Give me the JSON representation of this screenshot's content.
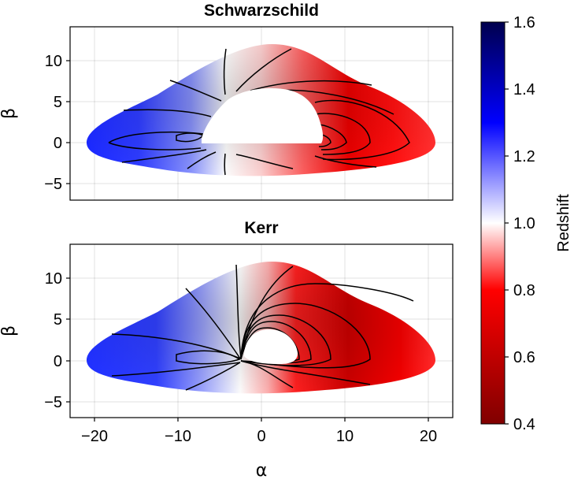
{
  "chart_data": {
    "type": "heatmap",
    "panels": [
      {
        "title": "Schwarzschild",
        "xlabel": "α",
        "ylabel": "β",
        "xlim": [
          -23,
          23
        ],
        "ylim": [
          -7,
          14
        ],
        "xticks": [
          "−20",
          "−10",
          "0",
          "10",
          "20"
        ],
        "yticks": [
          "−5",
          "0",
          "5",
          "10"
        ],
        "show_xticks": false,
        "grid": true,
        "disk_outer": {
          "x_min": -21,
          "x_max": 21,
          "y_top_peak": 12,
          "y_bottom_min": -4.2
        },
        "shadow": {
          "x_min": -7.5,
          "x_max": 7,
          "y_max": 6.5,
          "y_min": -0.2
        },
        "redshift_range": [
          0.6,
          1.35
        ]
      },
      {
        "title": "Kerr",
        "xlabel": "α",
        "ylabel": "β",
        "xlim": [
          -23,
          23
        ],
        "ylim": [
          -7,
          14
        ],
        "xticks": [
          "−20",
          "−10",
          "0",
          "10",
          "20"
        ],
        "yticks": [
          "−5",
          "0",
          "5",
          "10"
        ],
        "show_xticks": true,
        "grid": true,
        "disk_outer": {
          "x_min": -21,
          "x_max": 21,
          "y_top_peak": 12,
          "y_bottom_min": -4.2
        },
        "shadow": {
          "x_min": -2.3,
          "x_max": 4.3,
          "y_max": 3.8,
          "y_min": -0.5
        },
        "redshift_range": [
          0.55,
          1.3
        ]
      }
    ],
    "colorbar": {
      "label": "Redshift",
      "range": [
        0.4,
        1.6
      ],
      "ticks": [
        "0.4",
        "0.6",
        "0.8",
        "1.0",
        "1.2",
        "1.4",
        "1.6"
      ],
      "colormap": [
        "#800000",
        "#ff0000",
        "#ffffff",
        "#0000ff",
        "#00004d"
      ]
    },
    "xaxis_label": "α"
  }
}
